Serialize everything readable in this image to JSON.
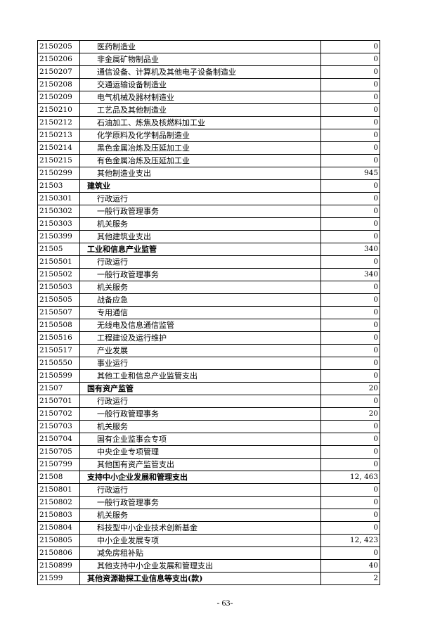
{
  "rows": [
    {
      "code": "2150205",
      "name": "医药制造业",
      "value": "0",
      "bold": false
    },
    {
      "code": "2150206",
      "name": "非金属矿物制品业",
      "value": "0",
      "bold": false
    },
    {
      "code": "2150207",
      "name": "通信设备、计算机及其他电子设备制造业",
      "value": "0",
      "bold": false
    },
    {
      "code": "2150208",
      "name": "交通运输设备制造业",
      "value": "0",
      "bold": false
    },
    {
      "code": "2150209",
      "name": "电气机械及器材制造业",
      "value": "0",
      "bold": false
    },
    {
      "code": "2150210",
      "name": "工艺品及其他制造业",
      "value": "0",
      "bold": false
    },
    {
      "code": "2150212",
      "name": "石油加工、炼焦及核燃料加工业",
      "value": "0",
      "bold": false
    },
    {
      "code": "2150213",
      "name": "化学原料及化学制品制造业",
      "value": "0",
      "bold": false
    },
    {
      "code": "2150214",
      "name": "黑色金属冶炼及压延加工业",
      "value": "0",
      "bold": false
    },
    {
      "code": "2150215",
      "name": "有色金属冶炼及压延加工业",
      "value": "0",
      "bold": false
    },
    {
      "code": "2150299",
      "name": "其他制造业支出",
      "value": "945",
      "bold": false
    },
    {
      "code": "21503",
      "name": "建筑业",
      "value": "0",
      "bold": true
    },
    {
      "code": "2150301",
      "name": "行政运行",
      "value": "0",
      "bold": false
    },
    {
      "code": "2150302",
      "name": "一般行政管理事务",
      "value": "0",
      "bold": false
    },
    {
      "code": "2150303",
      "name": "机关服务",
      "value": "0",
      "bold": false
    },
    {
      "code": "2150399",
      "name": "其他建筑业支出",
      "value": "0",
      "bold": false
    },
    {
      "code": "21505",
      "name": "工业和信息产业监管",
      "value": "340",
      "bold": true
    },
    {
      "code": "2150501",
      "name": "行政运行",
      "value": "0",
      "bold": false
    },
    {
      "code": "2150502",
      "name": "一般行政管理事务",
      "value": "340",
      "bold": false
    },
    {
      "code": "2150503",
      "name": "机关服务",
      "value": "0",
      "bold": false
    },
    {
      "code": "2150505",
      "name": "战备应急",
      "value": "0",
      "bold": false
    },
    {
      "code": "2150507",
      "name": "专用通信",
      "value": "0",
      "bold": false
    },
    {
      "code": "2150508",
      "name": "无线电及信息通信监管",
      "value": "0",
      "bold": false
    },
    {
      "code": "2150516",
      "name": "工程建设及运行维护",
      "value": "0",
      "bold": false
    },
    {
      "code": "2150517",
      "name": "产业发展",
      "value": "0",
      "bold": false
    },
    {
      "code": "2150550",
      "name": "事业运行",
      "value": "0",
      "bold": false
    },
    {
      "code": "2150599",
      "name": "其他工业和信息产业监管支出",
      "value": "0",
      "bold": false
    },
    {
      "code": "21507",
      "name": "国有资产监管",
      "value": "20",
      "bold": true
    },
    {
      "code": "2150701",
      "name": "行政运行",
      "value": "0",
      "bold": false
    },
    {
      "code": "2150702",
      "name": "一般行政管理事务",
      "value": "20",
      "bold": false
    },
    {
      "code": "2150703",
      "name": "机关服务",
      "value": "0",
      "bold": false
    },
    {
      "code": "2150704",
      "name": "国有企业监事会专项",
      "value": "0",
      "bold": false
    },
    {
      "code": "2150705",
      "name": "中央企业专项管理",
      "value": "0",
      "bold": false
    },
    {
      "code": "2150799",
      "name": "其他国有资产监管支出",
      "value": "0",
      "bold": false
    },
    {
      "code": "21508",
      "name": "支持中小企业发展和管理支出",
      "value": "12, 463",
      "bold": true
    },
    {
      "code": "2150801",
      "name": "行政运行",
      "value": "0",
      "bold": false
    },
    {
      "code": "2150802",
      "name": "一般行政管理事务",
      "value": "0",
      "bold": false
    },
    {
      "code": "2150803",
      "name": "机关服务",
      "value": "0",
      "bold": false
    },
    {
      "code": "2150804",
      "name": "科技型中小企业技术创新基金",
      "value": "0",
      "bold": false
    },
    {
      "code": "2150805",
      "name": "中小企业发展专项",
      "value": "12, 423",
      "bold": false
    },
    {
      "code": "2150806",
      "name": "减免房租补贴",
      "value": "0",
      "bold": false
    },
    {
      "code": "2150899",
      "name": "其他支持中小企业发展和管理支出",
      "value": "40",
      "bold": false
    },
    {
      "code": "21599",
      "name": "其他资源勘探工业信息等支出(款)",
      "value": "2",
      "bold": true
    }
  ],
  "page_number": "- 63-"
}
